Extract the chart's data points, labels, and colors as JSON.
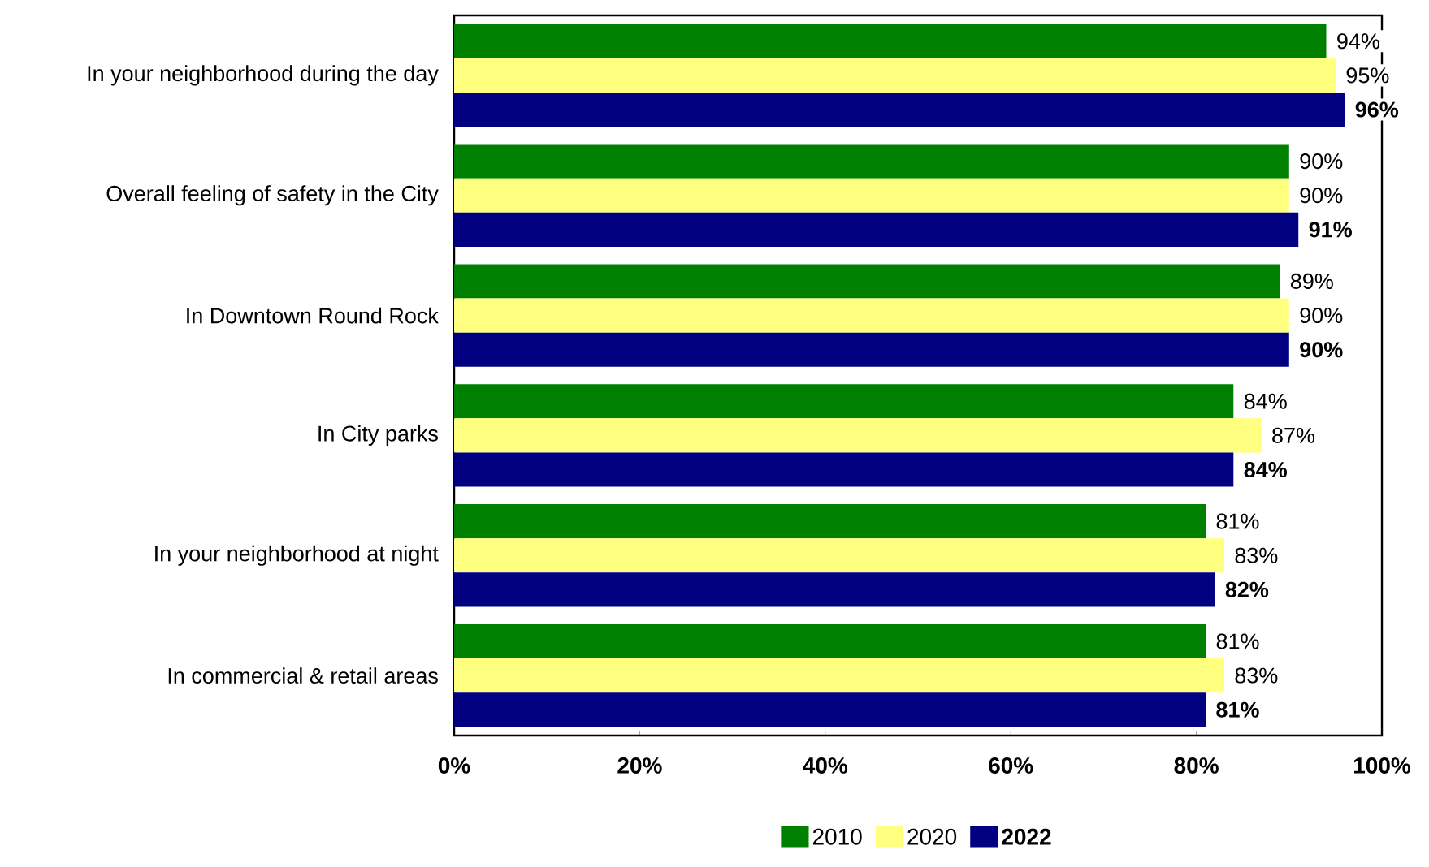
{
  "chart_data": {
    "type": "bar",
    "orientation": "horizontal",
    "categories": [
      "In your neighborhood during the day",
      "Overall feeling of safety in the City",
      "In Downtown Round Rock",
      "In City parks",
      "In your neighborhood at night",
      "In commercial & retail areas"
    ],
    "series": [
      {
        "name": "2010",
        "color": "#008000",
        "values": [
          94,
          90,
          89,
          84,
          81,
          81
        ],
        "value_labels": [
          "94%",
          "90%",
          "89%",
          "84%",
          "81%",
          "81%"
        ]
      },
      {
        "name": "2020",
        "color": "#ffff80",
        "values": [
          95,
          90,
          90,
          87,
          83,
          83
        ],
        "value_labels": [
          "95%",
          "90%",
          "90%",
          "87%",
          "83%",
          "83%"
        ]
      },
      {
        "name": "2022",
        "color": "#000080",
        "values": [
          96,
          91,
          90,
          84,
          82,
          81
        ],
        "value_labels": [
          "96%",
          "91%",
          "90%",
          "84%",
          "82%",
          "81%"
        ]
      }
    ],
    "xlim": [
      0,
      100
    ],
    "xticks": [
      {
        "value": 0,
        "label": "0%"
      },
      {
        "value": 20,
        "label": "20%"
      },
      {
        "value": 40,
        "label": "40%"
      },
      {
        "value": 60,
        "label": "60%"
      },
      {
        "value": 80,
        "label": "80%"
      },
      {
        "value": 100,
        "label": "100%"
      }
    ],
    "grid": false,
    "legend": "bottom"
  }
}
